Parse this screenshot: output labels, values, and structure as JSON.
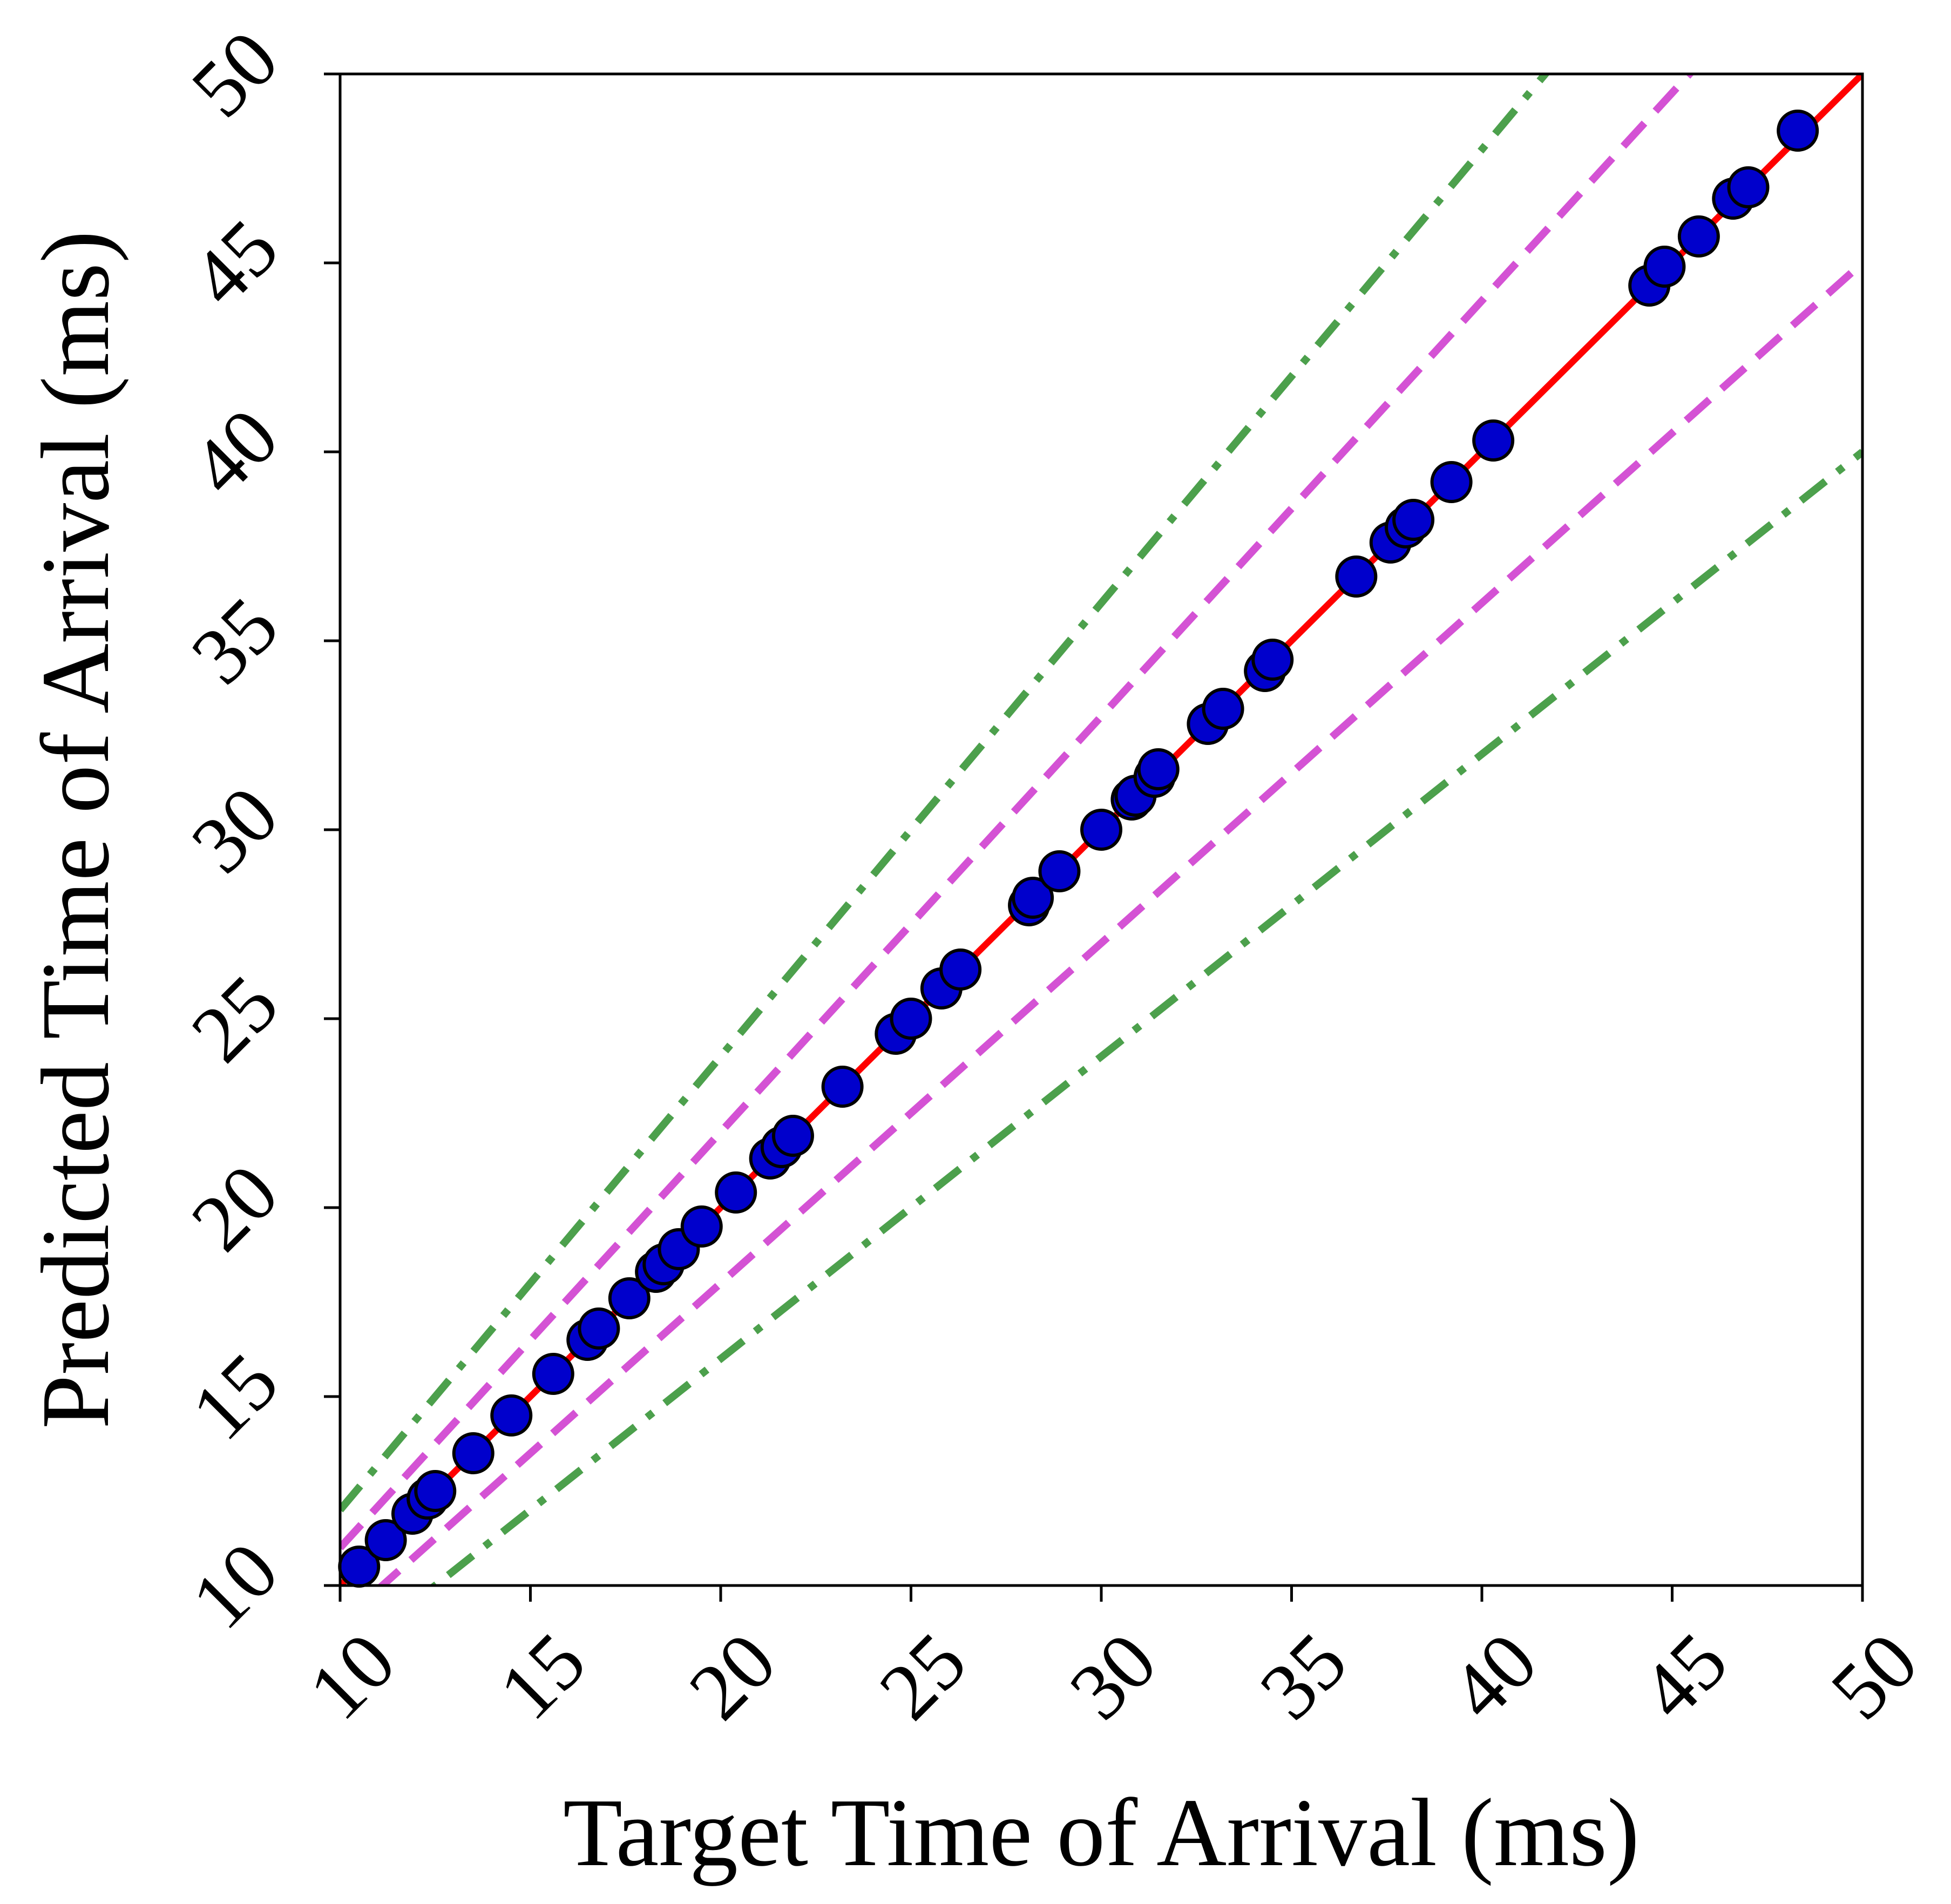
{
  "chart_data": {
    "type": "scatter",
    "xlabel": "Target Time of Arrival (ms)",
    "ylabel": "Predicted Time of Arrival (ms)",
    "xlim": [
      10,
      50
    ],
    "ylim": [
      10,
      50
    ],
    "xticks": [
      "10",
      "15",
      "20",
      "25",
      "30",
      "35",
      "40",
      "45",
      "50"
    ],
    "yticks": [
      "10",
      "15",
      "20",
      "25",
      "30",
      "35",
      "40",
      "45",
      "50"
    ],
    "grid": false,
    "reference_lines": [
      {
        "style": "solid",
        "color": "#ff0000",
        "slope": 1.0
      },
      {
        "style": "dashed",
        "color": "#d452d4",
        "slope": 1.1
      },
      {
        "style": "dashed",
        "color": "#d452d4",
        "slope": 0.9
      },
      {
        "style": "dashdot",
        "color": "#4ca04c",
        "slope": 1.2
      },
      {
        "style": "dashdot",
        "color": "#4ca04c",
        "slope": 0.8
      }
    ],
    "points": {
      "marker_color": "#0000cc",
      "edge_color": "#000000",
      "x": [
        10.5,
        11.2,
        11.9,
        12.3,
        12.5,
        13.5,
        14.5,
        15.6,
        16.5,
        16.8,
        17.6,
        18.3,
        18.5,
        18.9,
        19.5,
        20.4,
        21.3,
        21.6,
        21.9,
        23.2,
        24.6,
        25.0,
        25.8,
        26.3,
        28.1,
        28.2,
        28.9,
        30.0,
        30.8,
        30.9,
        31.4,
        31.5,
        32.8,
        33.2,
        34.3,
        34.5,
        36.7,
        37.6,
        38.0,
        38.2,
        39.2,
        40.3,
        44.4,
        44.8,
        45.7,
        46.6,
        47.0,
        48.3
      ],
      "y": [
        10.5,
        11.2,
        11.9,
        12.3,
        12.5,
        13.5,
        14.5,
        15.6,
        16.5,
        16.8,
        17.6,
        18.3,
        18.5,
        18.9,
        19.5,
        20.4,
        21.3,
        21.6,
        21.9,
        23.2,
        24.6,
        25.0,
        25.8,
        26.3,
        28.0,
        28.2,
        28.9,
        30.0,
        30.8,
        30.9,
        31.4,
        31.6,
        32.8,
        33.2,
        34.2,
        34.5,
        36.7,
        37.6,
        38.0,
        38.2,
        39.2,
        40.3,
        44.4,
        44.9,
        45.7,
        46.7,
        47.0,
        48.5
      ]
    }
  }
}
